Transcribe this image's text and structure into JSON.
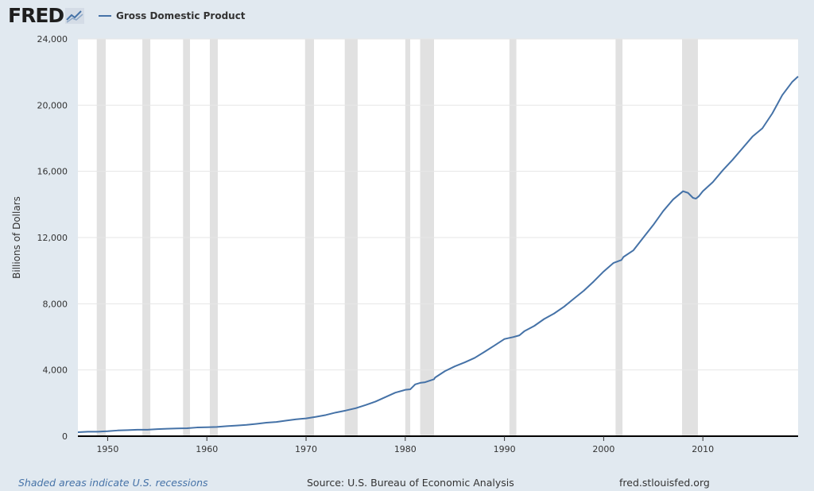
{
  "header": {
    "logo_text": "FRED",
    "logo_icon": "line-chart-icon",
    "legend_label": "Gross Domestic Product",
    "legend_color": "#4572a7"
  },
  "footer": {
    "recession_note": "Shaded areas indicate U.S. recessions",
    "source": "Source: U.S. Bureau of Economic Analysis",
    "site": "fred.stlouisfed.org"
  },
  "colors": {
    "background": "#e1e9f0",
    "plot_background": "#ffffff",
    "line": "#4572a7",
    "recession": "#e1e1e1",
    "grid": "#e6e6e6"
  },
  "chart_data": {
    "type": "line",
    "title": "",
    "xlabel": "",
    "ylabel": "Billions of Dollars",
    "xlim": [
      1947,
      2019.6
    ],
    "ylim": [
      0,
      24000
    ],
    "grid": true,
    "legend": "top-left",
    "x_ticks": [
      1950,
      1960,
      1970,
      1980,
      1990,
      2000,
      2010
    ],
    "y_ticks": [
      0,
      4000,
      8000,
      12000,
      16000,
      20000,
      24000
    ],
    "y_tick_labels": [
      "0",
      "4,000",
      "8,000",
      "12,000",
      "16,000",
      "20,000",
      "24,000"
    ],
    "recessions": [
      [
        1948.9,
        1949.8
      ],
      [
        1953.5,
        1954.3
      ],
      [
        1957.6,
        1958.3
      ],
      [
        1960.3,
        1961.1
      ],
      [
        1969.9,
        1970.8
      ],
      [
        1973.9,
        1975.2
      ],
      [
        1980.0,
        1980.5
      ],
      [
        1981.5,
        1982.9
      ],
      [
        1990.5,
        1991.2
      ],
      [
        2001.2,
        2001.9
      ],
      [
        2007.9,
        2009.5
      ]
    ],
    "series": [
      {
        "name": "Gross Domestic Product",
        "x": [
          1947,
          1948,
          1949,
          1950,
          1951,
          1952,
          1953,
          1954,
          1955,
          1956,
          1957,
          1958,
          1959,
          1960,
          1961,
          1962,
          1963,
          1964,
          1965,
          1966,
          1967,
          1968,
          1969,
          1970,
          1971,
          1972,
          1973,
          1974,
          1975,
          1976,
          1977,
          1978,
          1979,
          1980,
          1980.5,
          1981,
          1981.5,
          1982,
          1982.9,
          1983,
          1984,
          1985,
          1986,
          1987,
          1988,
          1989,
          1990,
          1990.9,
          1991.5,
          1992,
          1993,
          1994,
          1995,
          1996,
          1997,
          1998,
          1999,
          2000,
          2001,
          2001.8,
          2002,
          2003,
          2004,
          2005,
          2006,
          2007,
          2008,
          2008.5,
          2009,
          2009.3,
          2009.6,
          2010,
          2011,
          2012,
          2013,
          2014,
          2015,
          2016,
          2017,
          2018,
          2019,
          2019.6
        ],
        "values": [
          243,
          270,
          270,
          300,
          345,
          365,
          390,
          390,
          425,
          450,
          470,
          480,
          525,
          540,
          560,
          605,
          640,
          685,
          745,
          815,
          860,
          940,
          1020,
          1075,
          1170,
          1280,
          1430,
          1550,
          1690,
          1880,
          2090,
          2360,
          2630,
          2800,
          2830,
          3130,
          3220,
          3260,
          3440,
          3540,
          3930,
          4220,
          4460,
          4730,
          5100,
          5480,
          5870,
          5990,
          6090,
          6340,
          6660,
          7080,
          7410,
          7820,
          8310,
          8790,
          9350,
          9950,
          10470,
          10650,
          10830,
          11230,
          12000,
          12760,
          13600,
          14300,
          14800,
          14700,
          14400,
          14350,
          14500,
          14800,
          15350,
          16060,
          16700,
          17400,
          18100,
          18600,
          19500,
          20600,
          21400,
          21730
        ]
      }
    ]
  }
}
